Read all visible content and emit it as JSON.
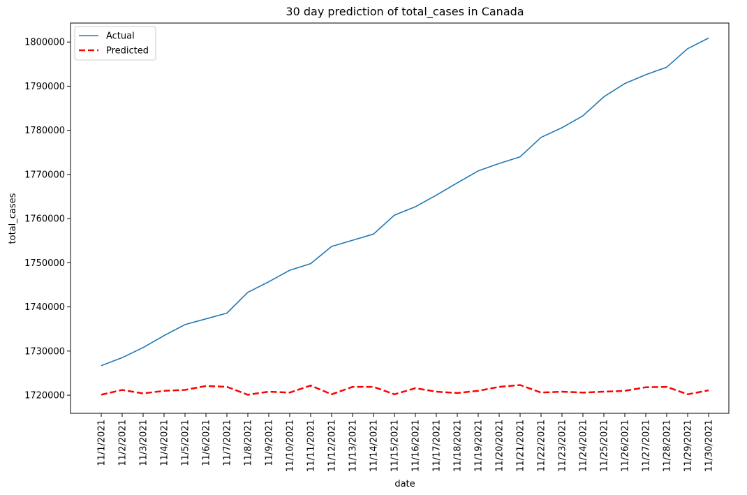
{
  "chart_data": {
    "type": "line",
    "title": "30 day prediction of total_cases in Canada",
    "xlabel": "date",
    "ylabel": "total_cases",
    "x": [
      "11/1/2021",
      "11/2/2021",
      "11/3/2021",
      "11/4/2021",
      "11/5/2021",
      "11/6/2021",
      "11/7/2021",
      "11/8/2021",
      "11/9/2021",
      "11/10/2021",
      "11/11/2021",
      "11/12/2021",
      "11/13/2021",
      "11/14/2021",
      "11/15/2021",
      "11/16/2021",
      "11/17/2021",
      "11/18/2021",
      "11/19/2021",
      "11/20/2021",
      "11/21/2021",
      "11/22/2021",
      "11/23/2021",
      "11/24/2021",
      "11/25/2021",
      "11/26/2021",
      "11/27/2021",
      "11/28/2021",
      "11/29/2021",
      "11/30/2021"
    ],
    "yticks": [
      1720000,
      1730000,
      1740000,
      1750000,
      1760000,
      1770000,
      1780000,
      1790000,
      1800000
    ],
    "ylim": [
      1715900,
      1804300
    ],
    "legend": "top-left",
    "grid": false,
    "series": [
      {
        "name": "Actual",
        "color": "#1f77b4",
        "style": "solid",
        "values": [
          1726700,
          1728500,
          1730800,
          1733500,
          1736000,
          1737300,
          1738600,
          1743300,
          1745700,
          1748300,
          1749800,
          1753700,
          1755100,
          1756500,
          1760800,
          1762700,
          1765300,
          1768100,
          1770800,
          1772500,
          1774000,
          1778400,
          1780600,
          1783300,
          1787600,
          1790600,
          1792600,
          1794300,
          1798500,
          1800900
        ]
      },
      {
        "name": "Predicted",
        "color": "#ff0000",
        "style": "dashed",
        "values": [
          1720100,
          1721200,
          1720400,
          1721000,
          1721200,
          1722100,
          1721900,
          1720100,
          1720800,
          1720600,
          1722200,
          1720200,
          1721900,
          1721900,
          1720200,
          1721600,
          1720800,
          1720500,
          1721000,
          1721900,
          1722300,
          1720600,
          1720800,
          1720600,
          1720800,
          1721000,
          1721800,
          1721900,
          1720200,
          1721100
        ]
      }
    ]
  }
}
